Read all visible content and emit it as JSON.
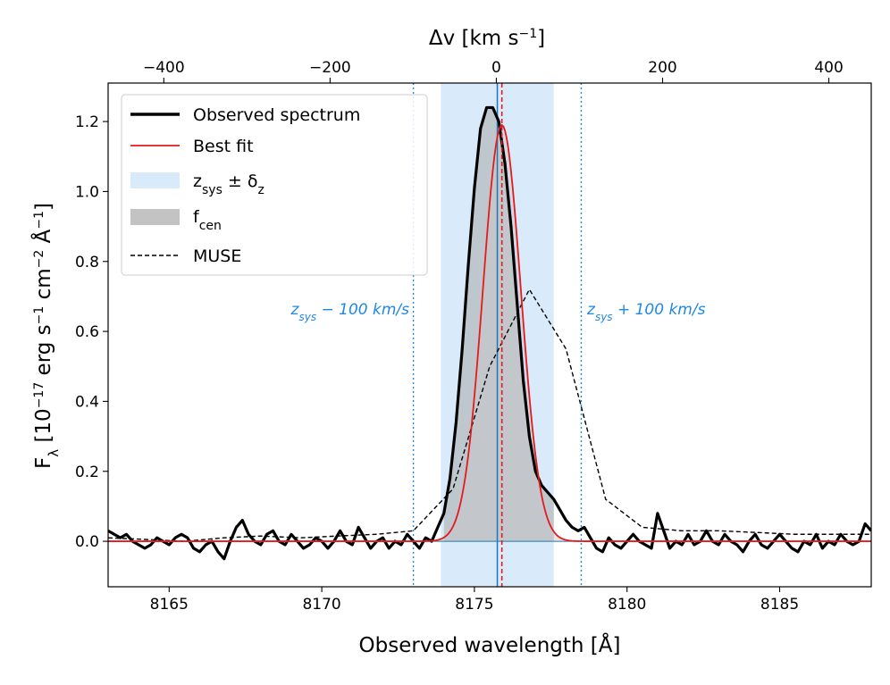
{
  "chart_data": {
    "type": "line",
    "xlabel": "Observed wavelength [Å]",
    "ylabel_parts": {
      "f": "F",
      "lambda": "λ",
      "open": " [10",
      "exp1": "−17",
      "erg": " erg s",
      "exp2": "−1",
      "cm": " cm",
      "exp3": "−2",
      "ang": " Å",
      "exp4": "−1",
      "close": "]"
    },
    "top_xlabel_parts": {
      "dv": "Δv [km s",
      "exp": "−1",
      "close": "]"
    },
    "xlim": [
      8163.0,
      8188.0
    ],
    "ylim": [
      -0.13,
      1.31
    ],
    "top_xlim": [
      -467,
      451
    ],
    "x_ticks": [
      8165,
      8170,
      8175,
      8180,
      8185
    ],
    "x_tick_labels": [
      "8165",
      "8170",
      "8175",
      "8180",
      "8185"
    ],
    "y_ticks": [
      0.0,
      0.2,
      0.4,
      0.6,
      0.8,
      1.0,
      1.2
    ],
    "y_tick_labels": [
      "0.0",
      "0.2",
      "0.4",
      "0.6",
      "0.8",
      "1.0",
      "1.2"
    ],
    "top_ticks": [
      -400,
      -200,
      0,
      200,
      400
    ],
    "top_tick_labels": [
      "−400",
      "−200",
      "0",
      "200",
      "400"
    ],
    "z_sys_wavelength": 8175.75,
    "delta_z_range": [
      8173.9,
      8177.6
    ],
    "best_fit_center": 8175.9,
    "dotted_lines": [
      8173.0,
      8178.5
    ],
    "annotations": {
      "minus_sub": "sys",
      "minus_rest": " − 100 km/s",
      "plus_sub": "sys",
      "plus_rest": " + 100 km/s",
      "z": "z"
    },
    "legend": [
      {
        "label": "Observed spectrum",
        "sub": "",
        "rest": ""
      },
      {
        "label": "Best fit",
        "sub": "",
        "rest": ""
      },
      {
        "label": "z",
        "sub": "sys",
        "rest": " ± δ",
        "sub2": "z"
      },
      {
        "label": "f",
        "sub": "cen",
        "rest": ""
      },
      {
        "label": "MUSE",
        "sub": "",
        "rest": ""
      }
    ],
    "best_fit": {
      "amplitude": 1.19,
      "center": 8175.9,
      "sigma": 0.62
    },
    "series": [
      {
        "name": "Observed spectrum",
        "x": [
          8163.0,
          8163.2,
          8163.4,
          8163.6,
          8163.8,
          8164.0,
          8164.2,
          8164.4,
          8164.6,
          8164.8,
          8165.0,
          8165.2,
          8165.4,
          8165.6,
          8165.8,
          8166.0,
          8166.2,
          8166.4,
          8166.6,
          8166.8,
          8167.0,
          8167.2,
          8167.4,
          8167.6,
          8167.8,
          8168.0,
          8168.2,
          8168.4,
          8168.6,
          8168.8,
          8169.0,
          8169.2,
          8169.4,
          8169.6,
          8169.8,
          8170.0,
          8170.2,
          8170.4,
          8170.6,
          8170.8,
          8171.0,
          8171.2,
          8171.4,
          8171.6,
          8171.8,
          8172.0,
          8172.2,
          8172.4,
          8172.6,
          8172.8,
          8173.0,
          8173.2,
          8173.4,
          8173.6,
          8173.8,
          8174.0,
          8174.2,
          8174.4,
          8174.6,
          8174.8,
          8175.0,
          8175.2,
          8175.4,
          8175.6,
          8175.8,
          8176.0,
          8176.2,
          8176.4,
          8176.6,
          8176.8,
          8177.0,
          8177.2,
          8177.4,
          8177.6,
          8177.8,
          8178.0,
          8178.2,
          8178.4,
          8178.6,
          8178.8,
          8179.0,
          8179.2,
          8179.4,
          8179.6,
          8179.8,
          8180.0,
          8180.2,
          8180.4,
          8180.6,
          8180.8,
          8181.0,
          8181.2,
          8181.4,
          8181.6,
          8181.8,
          8182.0,
          8182.2,
          8182.4,
          8182.6,
          8182.8,
          8183.0,
          8183.2,
          8183.4,
          8183.6,
          8183.8,
          8184.0,
          8184.2,
          8184.4,
          8184.6,
          8184.8,
          8185.0,
          8185.2,
          8185.4,
          8185.6,
          8185.8,
          8186.0,
          8186.2,
          8186.4,
          8186.6,
          8186.8,
          8187.0,
          8187.2,
          8187.4,
          8187.6,
          8187.8,
          8188.0
        ],
        "y": [
          0.03,
          0.02,
          0.01,
          0.02,
          0.0,
          -0.01,
          -0.02,
          -0.01,
          0.01,
          0.0,
          -0.01,
          0.01,
          0.02,
          0.01,
          -0.02,
          -0.03,
          -0.01,
          0.0,
          -0.03,
          -0.05,
          0.0,
          0.04,
          0.06,
          0.02,
          0.0,
          -0.01,
          0.02,
          0.03,
          0.0,
          -0.01,
          0.02,
          0.0,
          -0.02,
          -0.01,
          0.01,
          0.0,
          -0.02,
          0.0,
          0.03,
          0.0,
          -0.01,
          0.04,
          0.01,
          -0.02,
          0.0,
          0.01,
          -0.02,
          0.0,
          -0.01,
          0.02,
          0.0,
          -0.02,
          0.01,
          0.0,
          0.04,
          0.08,
          0.18,
          0.34,
          0.55,
          0.79,
          1.01,
          1.18,
          1.24,
          1.24,
          1.2,
          1.08,
          0.9,
          0.68,
          0.46,
          0.3,
          0.2,
          0.16,
          0.14,
          0.12,
          0.09,
          0.06,
          0.04,
          0.03,
          0.04,
          0.01,
          -0.02,
          -0.03,
          0.01,
          -0.01,
          -0.02,
          0.0,
          0.02,
          0.0,
          -0.01,
          -0.02,
          0.08,
          0.03,
          -0.02,
          0.0,
          -0.01,
          0.02,
          -0.01,
          0.0,
          0.03,
          0.0,
          -0.01,
          0.02,
          0.0,
          -0.01,
          -0.03,
          0.0,
          0.02,
          -0.01,
          -0.02,
          0.0,
          0.02,
          0.0,
          -0.02,
          -0.03,
          0.0,
          -0.01,
          0.02,
          -0.02,
          0.0,
          -0.01,
          0.02,
          0.0,
          -0.01,
          0.0,
          0.05,
          0.03
        ]
      },
      {
        "name": "MUSE",
        "x": [
          8163.0,
          8164.3,
          8165.5,
          8166.8,
          8168.0,
          8169.3,
          8170.5,
          8171.8,
          8173.0,
          8174.3,
          8175.5,
          8176.8,
          8178.0,
          8179.3,
          8180.5,
          8181.8,
          8183.0,
          8184.3,
          8185.5,
          8186.8,
          8188.0
        ],
        "y": [
          0.01,
          0.005,
          0.0,
          0.01,
          0.015,
          0.01,
          0.015,
          0.02,
          0.03,
          0.15,
          0.5,
          0.72,
          0.55,
          0.12,
          0.04,
          0.03,
          0.03,
          0.025,
          0.02,
          0.02,
          0.02
        ]
      }
    ],
    "colors": {
      "observed": "#000000",
      "best_fit": "#e41a1c",
      "band": "#d9eafb",
      "fcen": "#a9a9a9",
      "muse": "#000000",
      "zsys_line": "#1f77b4",
      "dotted": "#1e88e5",
      "zero_line": "#1f77b4"
    }
  }
}
